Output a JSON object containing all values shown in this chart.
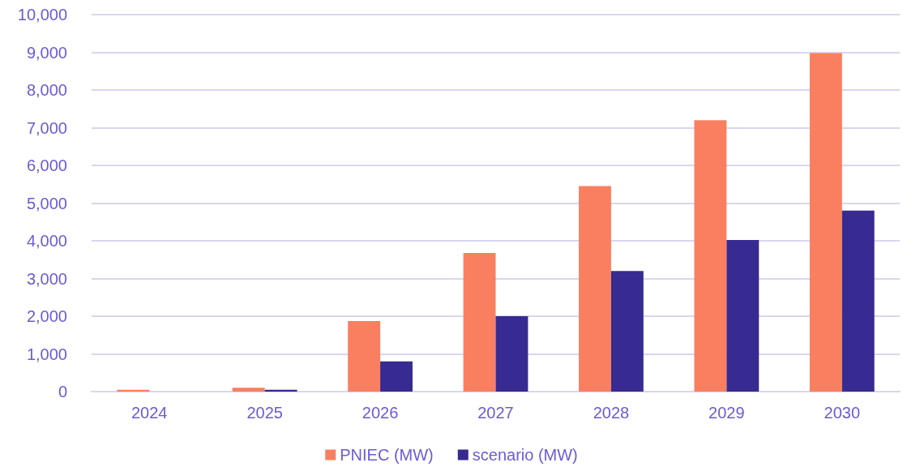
{
  "chart_data": {
    "type": "bar",
    "categories": [
      "2024",
      "2025",
      "2026",
      "2027",
      "2028",
      "2029",
      "2030"
    ],
    "series": [
      {
        "name": "PNIEC (MW)",
        "color": "#fa7f60",
        "values": [
          50,
          100,
          1870,
          3680,
          5450,
          7200,
          8980
        ]
      },
      {
        "name": "scenario (MW)",
        "color": "#372a91",
        "values": [
          0,
          50,
          800,
          2000,
          3200,
          4020,
          4800
        ]
      }
    ],
    "ylim": [
      0,
      10000
    ],
    "yticks": [
      {
        "value": 0,
        "label": "0"
      },
      {
        "value": 1000,
        "label": "1,000"
      },
      {
        "value": 2000,
        "label": "2,000"
      },
      {
        "value": 3000,
        "label": "3,000"
      },
      {
        "value": 4000,
        "label": "4,000"
      },
      {
        "value": 5000,
        "label": "5,000"
      },
      {
        "value": 6000,
        "label": "6,000"
      },
      {
        "value": 7000,
        "label": "7,000"
      },
      {
        "value": 8000,
        "label": "8,000"
      },
      {
        "value": 9000,
        "label": "9,000"
      },
      {
        "value": 10000,
        "label": "10,000"
      }
    ],
    "grid": "y",
    "legend": "bottom"
  }
}
